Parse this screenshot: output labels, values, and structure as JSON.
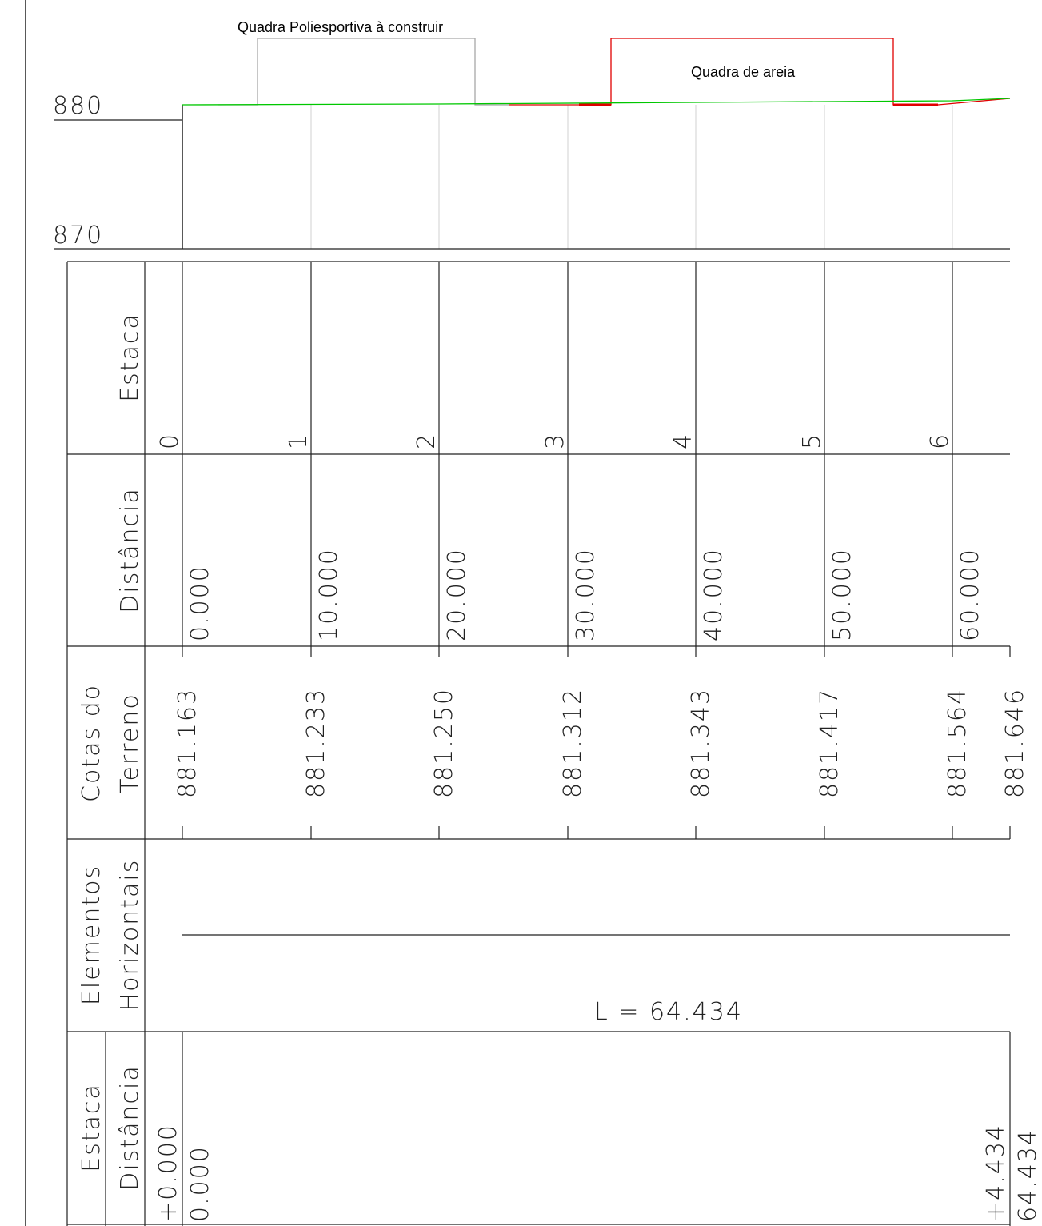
{
  "labels": {
    "court_poly": "Quadra Poliesportiva à construir",
    "court_sand": "Quadra de areia",
    "elev_880": "880",
    "elev_870": "870",
    "row_estaca": "Estaca",
    "row_distancia": "Distância",
    "row_cotas_1": "Cotas do",
    "row_cotas_2": "Terreno",
    "row_elem_1": "Elementos",
    "row_elem_2": "Horizontais",
    "row_bottom_estaca": "Estaca",
    "row_bottom_distancia": "Distância"
  },
  "colors": {
    "terrain": "#00c800",
    "sand_court": "#e00000",
    "poly_court": "#a0a0a0",
    "grid": "#d0d0d0",
    "ink": "#222222"
  },
  "stations": [
    "0",
    "1",
    "2",
    "3",
    "4",
    "5",
    "6"
  ],
  "distances": [
    "0.000",
    "10.000",
    "20.000",
    "30.000",
    "40.000",
    "50.000",
    "60.000"
  ],
  "elevations": [
    "881.163",
    "881.233",
    "881.250",
    "881.312",
    "881.343",
    "881.417",
    "881.564",
    "881.646"
  ],
  "horizontal": {
    "length": "L = 64.434"
  },
  "bottom": {
    "start_station": "+0.000",
    "start_distance": "0.000",
    "end_station": "+4.434",
    "end_distance": "64.434"
  }
}
